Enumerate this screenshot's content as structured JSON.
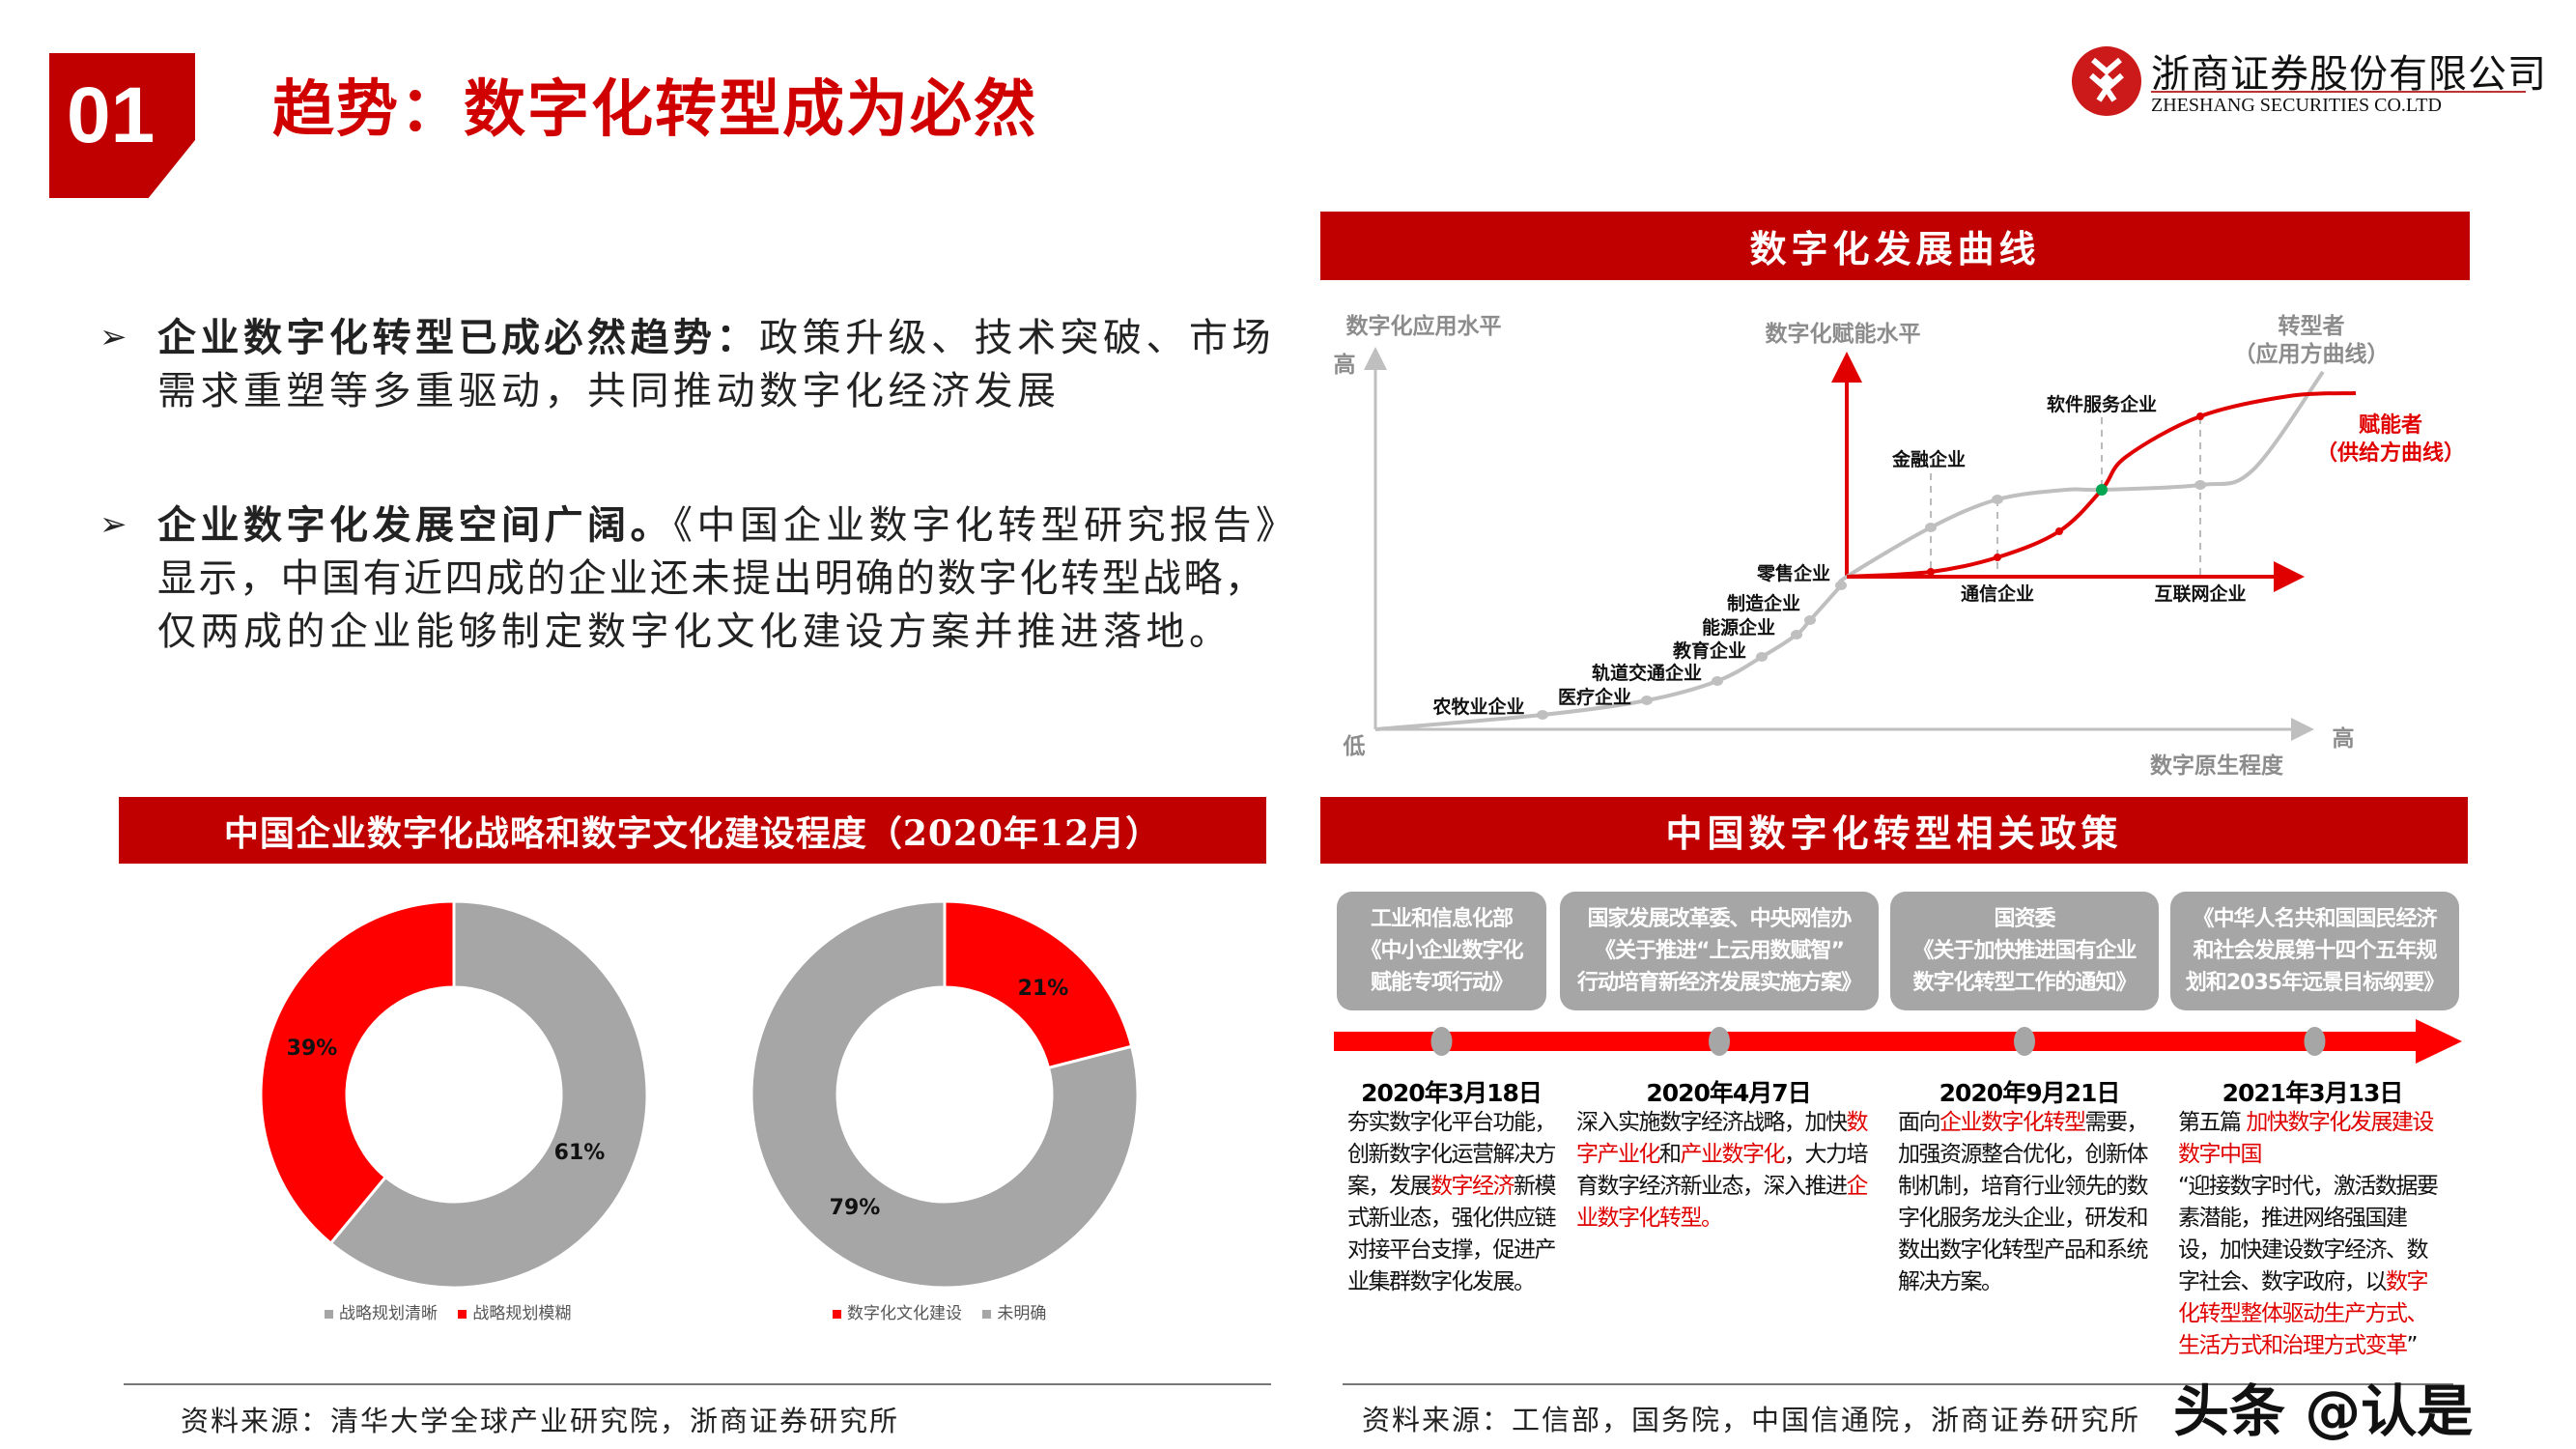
{
  "header": {
    "number": "01",
    "title": "趋势：数字化转型成为必然"
  },
  "logo": {
    "cn": "浙商证券股份有限公司",
    "en": "ZHESHANG SECURITIES CO.LTD"
  },
  "bullets": [
    {
      "bold": "企业数字化转型已成必然趋势：",
      "lines": [
        "政策升级、技术突破、市场",
        "需求重塑等多重驱动，共同推动数字化经济发展"
      ]
    },
    {
      "bold": "企业数字化发展空间广阔。",
      "lines": [
        "《中国企业数字化转型研究报告》",
        "显示，中国有近四成的企业还未提出明确的数字化转型战略，",
        "仅两成的企业能够制定数字化文化建设方案并推进落地。"
      ]
    }
  ],
  "curve_panel": {
    "title": "数字化发展曲线",
    "y_axis_title": "数字化应用水平",
    "y_high": "高",
    "low": "低",
    "x_high": "高",
    "x_axis_title": "数字原生程度",
    "enabler_axis_title": "数字化赋能水平",
    "transformer": "转型者",
    "transformer_sub": "（应用方曲线）",
    "enabler": "赋能者",
    "enabler_sub": "（供给方曲线）",
    "gray_labels": [
      "农牧业企业",
      "医疗企业",
      "轨道交通企业",
      "教育企业",
      "能源企业",
      "制造企业",
      "零售企业"
    ],
    "upper_labels": [
      "金融企业",
      "软件服务企业"
    ],
    "lower_labels": [
      "通信企业",
      "互联网企业"
    ],
    "colors": {
      "application_curve": "#bfbfbf",
      "supply_curve": "#e00000",
      "intersection": "#00a651"
    }
  },
  "donut_panel": {
    "title": "中国企业数字化战略和数字文化建设程度（2020年12月）",
    "source": "资料来源：清华大学全球产业研究院，浙商证券研究所"
  },
  "chart_data": [
    {
      "type": "pie",
      "donut": true,
      "categories": [
        "战略规划清晰",
        "战略规划模糊"
      ],
      "values": [
        61,
        39
      ],
      "labels": [
        "61%",
        "39%"
      ],
      "colors": [
        "#a6a6a6",
        "#ff0000"
      ],
      "legend": "bottom"
    },
    {
      "type": "pie",
      "donut": true,
      "categories": [
        "数字化文化建设",
        "未明确"
      ],
      "values": [
        21,
        79
      ],
      "labels": [
        "21%",
        "79%"
      ],
      "colors": [
        "#ff0000",
        "#a6a6a6"
      ],
      "legend": "bottom"
    }
  ],
  "policy_panel": {
    "title": "中国数字化转型相关政策",
    "source": "资料来源：工信部，国务院，中国信通院，浙商证券研究所",
    "items": [
      {
        "box": [
          "工业和信息化部",
          "《中小企业数字化",
          "赋能专项行动》"
        ],
        "date": "2020年3月18日",
        "body": [
          {
            "t": "夯实数字化平台功能，创新数字化运营解决方案，发展"
          },
          {
            "t": "数字经济",
            "red": true
          },
          {
            "t": "新模式新业态，强化供应链对接平台支撑，促进产业集群数字化发展。"
          }
        ]
      },
      {
        "box": [
          "国家发展改革委、中央网信办",
          "《关于推进“上云用数赋智”",
          "行动培育新经济发展实施方案》"
        ],
        "date": "2020年4月7日",
        "body": [
          {
            "t": "深入实施数字经济战略，加快"
          },
          {
            "t": "数字产业化",
            "red": true
          },
          {
            "t": "和"
          },
          {
            "t": "产业数字化",
            "red": true
          },
          {
            "t": "，大力培育数字经济新业态，深入推进"
          },
          {
            "t": "企业数字化转型。",
            "red": true
          }
        ]
      },
      {
        "box": [
          "国资委",
          "《关于加快推进国有企业",
          "数字化转型工作的通知》"
        ],
        "date": "2020年9月21日",
        "body": [
          {
            "t": "面向"
          },
          {
            "t": "企业数字化转型",
            "red": true
          },
          {
            "t": "需要，加强资源整合优化，创新体制机制，培育行业领先的数字化服务龙头企业，研发和数出数字化转型产品和系统解决方案。"
          }
        ]
      },
      {
        "box": [
          "《中华人名共和国国民经济",
          "和社会发展第十四个五年规",
          "划和2035年远景目标纲要》"
        ],
        "date": "2021年3月13日",
        "body": [
          {
            "t": "第五篇 "
          },
          {
            "t": "加快数字化发展建设数字中国",
            "red": true
          },
          {
            "t": "\n“迎接数字时代，激活数据要素潜能，推进网络强国建设，加快建设数字经济、数字社会、数字政府，以"
          },
          {
            "t": "数字化转型整体驱动生产方式、生活方式和治理方式变革",
            "red": true
          },
          {
            "t": "”"
          }
        ]
      }
    ]
  },
  "watermark": "头条 @认是"
}
